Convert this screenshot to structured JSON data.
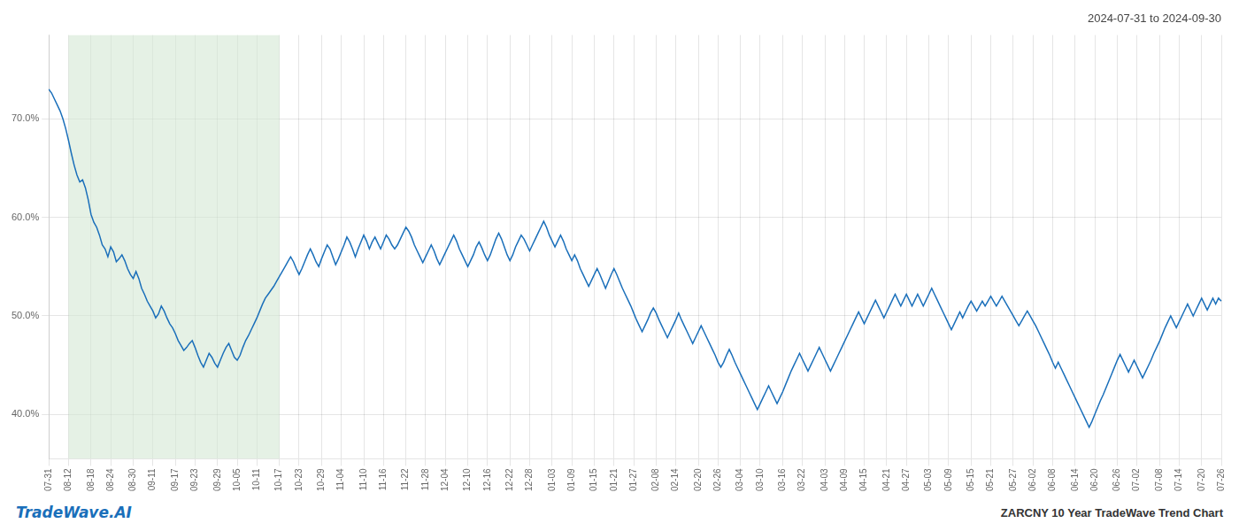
{
  "chart_data": {
    "type": "line",
    "title": "2024-07-31 to 2024-09-30",
    "annotations": [
      "TradeWave.AI",
      "ZARCNY 10 Year TradeWave Trend Chart"
    ],
    "color": "#1a6fba",
    "highlight": {
      "start": 7,
      "end": 82,
      "color": "#d4e8d4"
    },
    "ylim": [
      0.355,
      0.785
    ],
    "yticks": [
      {
        "value": 0.4,
        "label": "40.0%"
      },
      {
        "value": 0.5,
        "label": "50.0%"
      },
      {
        "value": 0.6,
        "label": "60.0%"
      },
      {
        "value": 0.7,
        "label": "70.0%"
      }
    ],
    "grid": true,
    "categories": [
      "07-31",
      null,
      null,
      null,
      null,
      null,
      null,
      "08-12",
      null,
      null,
      null,
      null,
      null,
      null,
      null,
      "08-18",
      null,
      null,
      null,
      null,
      null,
      null,
      "08-24",
      null,
      null,
      null,
      null,
      null,
      null,
      null,
      "08-30",
      null,
      null,
      null,
      null,
      null,
      null,
      "09-11",
      null,
      null,
      null,
      null,
      null,
      null,
      null,
      "09-17",
      null,
      null,
      null,
      null,
      null,
      null,
      "09-23",
      null,
      null,
      null,
      null,
      null,
      null,
      null,
      "09-29",
      null,
      null,
      null,
      null,
      null,
      null,
      "10-05",
      null,
      null,
      null,
      null,
      null,
      null,
      "10-11",
      null,
      null,
      null,
      null,
      null,
      null,
      null,
      "10-17",
      null,
      null,
      null,
      null,
      null,
      null,
      "10-23",
      null,
      null,
      null,
      null,
      null,
      null,
      null,
      "10-29",
      null,
      null,
      null,
      null,
      null,
      null,
      "11-04",
      null,
      null,
      null,
      null,
      null,
      null,
      null,
      "11-10",
      null,
      null,
      null,
      null,
      null,
      null,
      "11-16",
      null,
      null,
      null,
      null,
      null,
      null,
      null,
      "11-22",
      null,
      null,
      null,
      null,
      null,
      null,
      "11-28",
      null,
      null,
      null,
      null,
      null,
      null,
      "12-04",
      null,
      null,
      null,
      null,
      null,
      null,
      null,
      "12-10",
      null,
      null,
      null,
      null,
      null,
      null,
      "12-16",
      null,
      null,
      null,
      null,
      null,
      null,
      null,
      "12-22",
      null,
      null,
      null,
      null,
      null,
      null,
      "12-28",
      null,
      null,
      null,
      null,
      null,
      null,
      null,
      "01-03",
      null,
      null,
      null,
      null,
      null,
      null,
      "01-09",
      null,
      null,
      null,
      null,
      null,
      null,
      null,
      "01-15",
      null,
      null,
      null,
      null,
      null,
      null,
      "01-21",
      null,
      null,
      null,
      null,
      null,
      null,
      "01-27",
      null,
      null,
      null,
      null,
      null,
      null,
      null,
      "02-08",
      null,
      null,
      null,
      null,
      null,
      null,
      "02-14",
      null,
      null,
      null,
      null,
      null,
      null,
      null,
      "02-20",
      null,
      null,
      null,
      null,
      null,
      null,
      "02-26",
      null,
      null,
      null,
      null,
      null,
      null,
      null,
      "03-04",
      null,
      null,
      null,
      null,
      null,
      null,
      "03-10",
      null,
      null,
      null,
      null,
      null,
      null,
      null,
      "03-16",
      null,
      null,
      null,
      null,
      null,
      null,
      "03-22",
      null,
      null,
      null,
      null,
      null,
      null,
      null,
      "04-03",
      null,
      null,
      null,
      null,
      null,
      null,
      "04-09",
      null,
      null,
      null,
      null,
      null,
      null,
      "04-15",
      null,
      null,
      null,
      null,
      null,
      null,
      null,
      "04-21",
      null,
      null,
      null,
      null,
      null,
      null,
      "04-27",
      null,
      null,
      null,
      null,
      null,
      null,
      null,
      "05-03",
      null,
      null,
      null,
      null,
      null,
      null,
      "05-09",
      null,
      null,
      null,
      null,
      null,
      null,
      null,
      "05-15",
      null,
      null,
      null,
      null,
      null,
      null,
      "05-21",
      null,
      null,
      null,
      null,
      null,
      null,
      null,
      "05-27",
      null,
      null,
      null,
      null,
      null,
      null,
      "06-02",
      null,
      null,
      null,
      null,
      null,
      null,
      "06-08",
      null,
      null,
      null,
      null,
      null,
      null,
      null,
      "06-14",
      null,
      null,
      null,
      null,
      null,
      null,
      "06-20",
      null,
      null,
      null,
      null,
      null,
      null,
      null,
      "06-26",
      null,
      null,
      null,
      null,
      null,
      null,
      "07-02",
      null,
      null,
      null,
      null,
      null,
      null,
      null,
      "07-08",
      null,
      null,
      null,
      null,
      null,
      null,
      "07-14",
      null,
      null,
      null,
      null,
      null,
      null,
      null,
      "07-20",
      null,
      null,
      null,
      null,
      null,
      null,
      "07-26"
    ],
    "values": [
      0.73,
      0.726,
      0.72,
      0.714,
      0.708,
      0.7,
      0.69,
      0.678,
      0.665,
      0.653,
      0.643,
      0.636,
      0.638,
      0.63,
      0.618,
      0.603,
      0.595,
      0.59,
      0.582,
      0.572,
      0.568,
      0.56,
      0.57,
      0.565,
      0.555,
      0.558,
      0.562,
      0.556,
      0.548,
      0.542,
      0.538,
      0.545,
      0.538,
      0.528,
      0.522,
      0.515,
      0.51,
      0.505,
      0.498,
      0.502,
      0.51,
      0.505,
      0.498,
      0.492,
      0.488,
      0.482,
      0.475,
      0.47,
      0.465,
      0.468,
      0.472,
      0.475,
      0.468,
      0.46,
      0.453,
      0.448,
      0.455,
      0.462,
      0.458,
      0.452,
      0.448,
      0.455,
      0.462,
      0.468,
      0.472,
      0.465,
      0.458,
      0.455,
      0.46,
      0.468,
      0.475,
      0.48,
      0.486,
      0.492,
      0.498,
      0.505,
      0.512,
      0.518,
      0.522,
      0.526,
      0.53,
      0.535,
      0.54,
      0.545,
      0.55,
      0.555,
      0.56,
      0.555,
      0.548,
      0.542,
      0.548,
      0.555,
      0.562,
      0.568,
      0.562,
      0.555,
      0.55,
      0.558,
      0.565,
      0.572,
      0.568,
      0.56,
      0.552,
      0.558,
      0.565,
      0.572,
      0.58,
      0.575,
      0.568,
      0.56,
      0.568,
      0.575,
      0.582,
      0.576,
      0.568,
      0.575,
      0.58,
      0.574,
      0.568,
      0.575,
      0.582,
      0.578,
      0.572,
      0.568,
      0.572,
      0.578,
      0.584,
      0.59,
      0.586,
      0.58,
      0.572,
      0.566,
      0.56,
      0.554,
      0.56,
      0.566,
      0.572,
      0.566,
      0.558,
      0.552,
      0.558,
      0.564,
      0.57,
      0.576,
      0.582,
      0.576,
      0.568,
      0.562,
      0.556,
      0.55,
      0.556,
      0.562,
      0.57,
      0.575,
      0.569,
      0.562,
      0.556,
      0.562,
      0.57,
      0.578,
      0.584,
      0.578,
      0.57,
      0.562,
      0.556,
      0.562,
      0.57,
      0.576,
      0.582,
      0.578,
      0.572,
      0.566,
      0.572,
      0.578,
      0.584,
      0.59,
      0.596,
      0.59,
      0.582,
      0.576,
      0.57,
      0.576,
      0.582,
      0.576,
      0.568,
      0.562,
      0.556,
      0.562,
      0.556,
      0.548,
      0.542,
      0.536,
      0.53,
      0.536,
      0.542,
      0.548,
      0.542,
      0.535,
      0.528,
      0.535,
      0.542,
      0.548,
      0.542,
      0.535,
      0.528,
      0.522,
      0.516,
      0.51,
      0.503,
      0.496,
      0.49,
      0.484,
      0.49,
      0.496,
      0.503,
      0.508,
      0.503,
      0.496,
      0.49,
      0.484,
      0.478,
      0.484,
      0.49,
      0.496,
      0.503,
      0.496,
      0.49,
      0.484,
      0.478,
      0.472,
      0.478,
      0.484,
      0.49,
      0.484,
      0.478,
      0.472,
      0.466,
      0.46,
      0.453,
      0.448,
      0.453,
      0.46,
      0.466,
      0.46,
      0.453,
      0.447,
      0.441,
      0.435,
      0.429,
      0.423,
      0.417,
      0.411,
      0.405,
      0.411,
      0.417,
      0.423,
      0.429,
      0.423,
      0.417,
      0.411,
      0.417,
      0.423,
      0.43,
      0.437,
      0.444,
      0.45,
      0.456,
      0.462,
      0.456,
      0.45,
      0.444,
      0.45,
      0.456,
      0.462,
      0.468,
      0.462,
      0.456,
      0.45,
      0.444,
      0.45,
      0.456,
      0.462,
      0.468,
      0.474,
      0.48,
      0.486,
      0.492,
      0.498,
      0.504,
      0.498,
      0.492,
      0.498,
      0.504,
      0.51,
      0.516,
      0.51,
      0.504,
      0.498,
      0.504,
      0.51,
      0.516,
      0.522,
      0.516,
      0.51,
      0.516,
      0.522,
      0.516,
      0.51,
      0.516,
      0.522,
      0.516,
      0.51,
      0.516,
      0.522,
      0.528,
      0.522,
      0.516,
      0.51,
      0.504,
      0.498,
      0.492,
      0.486,
      0.492,
      0.498,
      0.504,
      0.498,
      0.504,
      0.51,
      0.515,
      0.51,
      0.505,
      0.51,
      0.515,
      0.51,
      0.515,
      0.52,
      0.515,
      0.51,
      0.515,
      0.52,
      0.515,
      0.51,
      0.505,
      0.5,
      0.495,
      0.49,
      0.495,
      0.5,
      0.505,
      0.5,
      0.495,
      0.49,
      0.484,
      0.478,
      0.472,
      0.466,
      0.46,
      0.453,
      0.447,
      0.453,
      0.447,
      0.441,
      0.435,
      0.429,
      0.423,
      0.417,
      0.411,
      0.405,
      0.399,
      0.393,
      0.387,
      0.393,
      0.4,
      0.407,
      0.414,
      0.42,
      0.427,
      0.434,
      0.441,
      0.448,
      0.455,
      0.461,
      0.455,
      0.449,
      0.443,
      0.449,
      0.455,
      0.449,
      0.443,
      0.437,
      0.443,
      0.449,
      0.455,
      0.462,
      0.468,
      0.474,
      0.481,
      0.488,
      0.494,
      0.5,
      0.494,
      0.488,
      0.494,
      0.5,
      0.506,
      0.512,
      0.506,
      0.5,
      0.506,
      0.512,
      0.518,
      0.512,
      0.506,
      0.512,
      0.518,
      0.512,
      0.518,
      0.515
    ]
  }
}
